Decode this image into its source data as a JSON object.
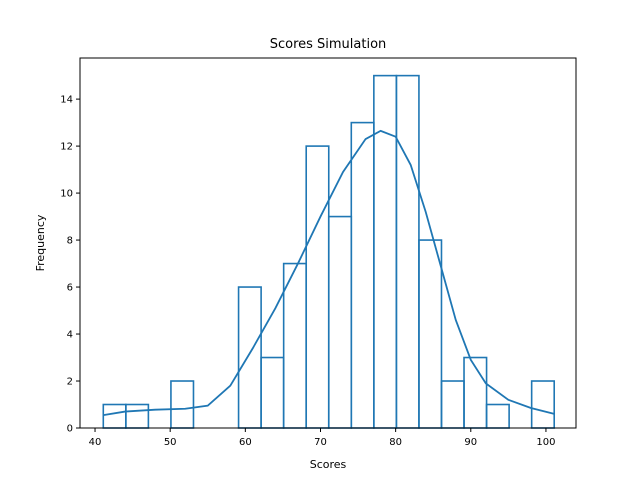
{
  "chart_data": {
    "type": "bar",
    "subtype": "histogram-with-kde",
    "title": "Scores Simulation",
    "xlabel": "Scores",
    "ylabel": "Frequency",
    "xlim": [
      38,
      104
    ],
    "ylim": [
      0,
      15.75
    ],
    "xticks": [
      40,
      50,
      60,
      70,
      80,
      90,
      100
    ],
    "yticks": [
      0,
      2,
      4,
      6,
      8,
      10,
      12,
      14
    ],
    "bins": [
      {
        "x0": 41.1,
        "x1": 44.1,
        "count": 1
      },
      {
        "x0": 44.1,
        "x1": 47.1,
        "count": 1
      },
      {
        "x0": 47.1,
        "x1": 50.1,
        "count": 0
      },
      {
        "x0": 50.1,
        "x1": 53.1,
        "count": 2
      },
      {
        "x0": 53.1,
        "x1": 56.1,
        "count": 0
      },
      {
        "x0": 56.1,
        "x1": 59.1,
        "count": 0
      },
      {
        "x0": 59.1,
        "x1": 62.1,
        "count": 6
      },
      {
        "x0": 62.1,
        "x1": 65.1,
        "count": 3
      },
      {
        "x0": 65.1,
        "x1": 68.1,
        "count": 7
      },
      {
        "x0": 68.1,
        "x1": 71.1,
        "count": 12
      },
      {
        "x0": 71.1,
        "x1": 74.1,
        "count": 9
      },
      {
        "x0": 74.1,
        "x1": 77.1,
        "count": 13
      },
      {
        "x0": 77.1,
        "x1": 80.1,
        "count": 15
      },
      {
        "x0": 80.1,
        "x1": 83.1,
        "count": 15
      },
      {
        "x0": 83.1,
        "x1": 86.1,
        "count": 8
      },
      {
        "x0": 86.1,
        "x1": 89.1,
        "count": 2
      },
      {
        "x0": 89.1,
        "x1": 92.1,
        "count": 3
      },
      {
        "x0": 92.1,
        "x1": 95.1,
        "count": 1
      },
      {
        "x0": 95.1,
        "x1": 98.1,
        "count": 0
      },
      {
        "x0": 98.1,
        "x1": 101.1,
        "count": 2
      }
    ],
    "kde": {
      "x": [
        41.1,
        44,
        48,
        52,
        55,
        58,
        61,
        64,
        67,
        70,
        73,
        76,
        78,
        80,
        82,
        84,
        86,
        88,
        90,
        92,
        95,
        98,
        101.1
      ],
      "y": [
        0.55,
        0.7,
        0.78,
        0.82,
        0.95,
        1.8,
        3.4,
        5.1,
        7.0,
        9.0,
        10.9,
        12.3,
        12.65,
        12.4,
        11.2,
        9.2,
        6.9,
        4.6,
        2.9,
        1.9,
        1.2,
        0.85,
        0.6
      ]
    },
    "grid": false,
    "color": "#1f77b4"
  }
}
